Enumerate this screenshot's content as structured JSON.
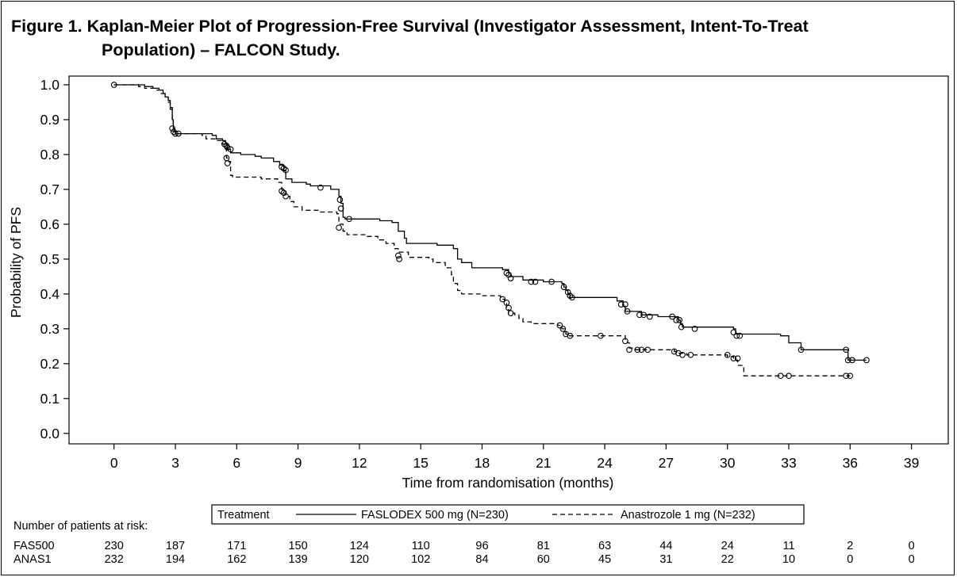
{
  "figure": {
    "title_line1": "Figure 1. Kaplan-Meier Plot of Progression-Free Survival (Investigator Assessment, Intent-To-Treat",
    "title_line2": "Population) – FALCON Study."
  },
  "chart_data": {
    "type": "line",
    "subtype": "kaplan-meier step",
    "xlabel": "Time from randomisation (months)",
    "ylabel": "Probability of PFS",
    "xlim": [
      -2.2,
      40.8
    ],
    "ylim": [
      -0.03,
      1.025
    ],
    "xticks": [
      0,
      3,
      6,
      9,
      12,
      15,
      18,
      21,
      24,
      27,
      30,
      33,
      36,
      39
    ],
    "yticks": [
      "0.0",
      "0.1",
      "0.2",
      "0.3",
      "0.4",
      "0.5",
      "0.6",
      "0.7",
      "0.8",
      "0.9",
      "1.0"
    ],
    "grid": false,
    "legend": {
      "title": "Treatment",
      "placement": "bottom-center",
      "entries": [
        "FASLODEX 500 mg (N=230)",
        "Anastrozole 1 mg (N=232)"
      ]
    },
    "series": [
      {
        "name": "FASLODEX 500 mg (N=230)",
        "line_style": "solid",
        "steps": [
          [
            0,
            1.0
          ],
          [
            1.4,
            1.0
          ],
          [
            1.5,
            0.995
          ],
          [
            1.9,
            0.99
          ],
          [
            2.2,
            0.985
          ],
          [
            2.4,
            0.975
          ],
          [
            2.5,
            0.965
          ],
          [
            2.65,
            0.955
          ],
          [
            2.75,
            0.935
          ],
          [
            2.85,
            0.9
          ],
          [
            2.9,
            0.875
          ],
          [
            2.95,
            0.865
          ],
          [
            3.0,
            0.86
          ],
          [
            4.8,
            0.855
          ],
          [
            5.0,
            0.845
          ],
          [
            5.3,
            0.84
          ],
          [
            5.45,
            0.83
          ],
          [
            5.55,
            0.815
          ],
          [
            5.7,
            0.805
          ],
          [
            6.2,
            0.8
          ],
          [
            6.9,
            0.795
          ],
          [
            7.2,
            0.79
          ],
          [
            7.8,
            0.78
          ],
          [
            8.1,
            0.77
          ],
          [
            8.3,
            0.755
          ],
          [
            8.4,
            0.73
          ],
          [
            8.7,
            0.72
          ],
          [
            9.4,
            0.715
          ],
          [
            9.6,
            0.71
          ],
          [
            10.6,
            0.7
          ],
          [
            11.0,
            0.68
          ],
          [
            11.1,
            0.66
          ],
          [
            11.2,
            0.62
          ],
          [
            11.3,
            0.615
          ],
          [
            13.0,
            0.61
          ],
          [
            13.6,
            0.605
          ],
          [
            13.9,
            0.58
          ],
          [
            14.2,
            0.56
          ],
          [
            14.3,
            0.545
          ],
          [
            15.8,
            0.54
          ],
          [
            16.6,
            0.53
          ],
          [
            16.8,
            0.5
          ],
          [
            17.0,
            0.49
          ],
          [
            17.5,
            0.475
          ],
          [
            19.0,
            0.47
          ],
          [
            19.3,
            0.46
          ],
          [
            19.4,
            0.45
          ],
          [
            20.0,
            0.44
          ],
          [
            21.0,
            0.435
          ],
          [
            21.9,
            0.43
          ],
          [
            22.0,
            0.42
          ],
          [
            22.1,
            0.41
          ],
          [
            22.2,
            0.4
          ],
          [
            22.3,
            0.39
          ],
          [
            24.6,
            0.38
          ],
          [
            24.9,
            0.365
          ],
          [
            25.0,
            0.35
          ],
          [
            25.8,
            0.34
          ],
          [
            26.6,
            0.335
          ],
          [
            27.6,
            0.325
          ],
          [
            27.7,
            0.315
          ],
          [
            27.8,
            0.305
          ],
          [
            30.3,
            0.3
          ],
          [
            30.4,
            0.285
          ],
          [
            32.6,
            0.28
          ],
          [
            33.0,
            0.26
          ],
          [
            33.6,
            0.24
          ],
          [
            35.8,
            0.24
          ],
          [
            35.9,
            0.21
          ],
          [
            36.8,
            0.21
          ]
        ],
        "censored": [
          [
            0,
            1.0
          ],
          [
            2.85,
            0.875
          ],
          [
            2.92,
            0.865
          ],
          [
            3.0,
            0.86
          ],
          [
            3.15,
            0.86
          ],
          [
            5.4,
            0.83
          ],
          [
            5.5,
            0.825
          ],
          [
            5.55,
            0.82
          ],
          [
            5.7,
            0.815
          ],
          [
            8.2,
            0.765
          ],
          [
            8.3,
            0.76
          ],
          [
            8.4,
            0.755
          ],
          [
            10.1,
            0.705
          ],
          [
            11.05,
            0.67
          ],
          [
            11.1,
            0.645
          ],
          [
            11.5,
            0.615
          ],
          [
            19.2,
            0.46
          ],
          [
            19.3,
            0.455
          ],
          [
            19.4,
            0.445
          ],
          [
            20.4,
            0.435
          ],
          [
            20.6,
            0.435
          ],
          [
            21.4,
            0.435
          ],
          [
            22.0,
            0.42
          ],
          [
            22.2,
            0.405
          ],
          [
            22.3,
            0.395
          ],
          [
            22.4,
            0.39
          ],
          [
            24.8,
            0.37
          ],
          [
            25.0,
            0.37
          ],
          [
            25.1,
            0.35
          ],
          [
            25.7,
            0.34
          ],
          [
            25.9,
            0.34
          ],
          [
            26.2,
            0.335
          ],
          [
            27.3,
            0.335
          ],
          [
            27.5,
            0.325
          ],
          [
            27.65,
            0.325
          ],
          [
            27.75,
            0.305
          ],
          [
            28.4,
            0.3
          ],
          [
            30.3,
            0.29
          ],
          [
            30.45,
            0.28
          ],
          [
            30.6,
            0.28
          ],
          [
            33.6,
            0.24
          ],
          [
            35.8,
            0.24
          ],
          [
            35.9,
            0.21
          ],
          [
            36.1,
            0.21
          ],
          [
            36.8,
            0.21
          ]
        ]
      },
      {
        "name": "Anastrozole 1 mg (N=232)",
        "line_style": "dashed",
        "steps": [
          [
            0,
            1.0
          ],
          [
            1.2,
            0.995
          ],
          [
            1.5,
            0.99
          ],
          [
            2.0,
            0.985
          ],
          [
            2.3,
            0.975
          ],
          [
            2.5,
            0.965
          ],
          [
            2.65,
            0.95
          ],
          [
            2.75,
            0.93
          ],
          [
            2.85,
            0.9
          ],
          [
            2.9,
            0.875
          ],
          [
            2.95,
            0.865
          ],
          [
            3.0,
            0.86
          ],
          [
            4.3,
            0.855
          ],
          [
            4.5,
            0.845
          ],
          [
            5.0,
            0.84
          ],
          [
            5.3,
            0.83
          ],
          [
            5.5,
            0.79
          ],
          [
            5.6,
            0.78
          ],
          [
            5.7,
            0.74
          ],
          [
            5.8,
            0.735
          ],
          [
            7.2,
            0.73
          ],
          [
            8.0,
            0.72
          ],
          [
            8.2,
            0.7
          ],
          [
            8.4,
            0.68
          ],
          [
            8.6,
            0.665
          ],
          [
            8.8,
            0.65
          ],
          [
            9.2,
            0.64
          ],
          [
            10.0,
            0.635
          ],
          [
            10.9,
            0.63
          ],
          [
            11.0,
            0.6
          ],
          [
            11.2,
            0.58
          ],
          [
            11.4,
            0.57
          ],
          [
            12.3,
            0.565
          ],
          [
            12.9,
            0.555
          ],
          [
            13.3,
            0.545
          ],
          [
            13.7,
            0.53
          ],
          [
            13.9,
            0.52
          ],
          [
            14.4,
            0.505
          ],
          [
            15.4,
            0.5
          ],
          [
            15.6,
            0.49
          ],
          [
            16.2,
            0.48
          ],
          [
            16.3,
            0.475
          ],
          [
            16.5,
            0.455
          ],
          [
            16.6,
            0.43
          ],
          [
            16.8,
            0.41
          ],
          [
            17.0,
            0.4
          ],
          [
            18.0,
            0.395
          ],
          [
            18.9,
            0.385
          ],
          [
            19.1,
            0.375
          ],
          [
            19.2,
            0.36
          ],
          [
            19.3,
            0.345
          ],
          [
            19.6,
            0.34
          ],
          [
            19.8,
            0.33
          ],
          [
            20.0,
            0.32
          ],
          [
            20.4,
            0.315
          ],
          [
            21.7,
            0.31
          ],
          [
            21.9,
            0.3
          ],
          [
            22.1,
            0.285
          ],
          [
            22.2,
            0.28
          ],
          [
            25.0,
            0.27
          ],
          [
            25.1,
            0.26
          ],
          [
            25.2,
            0.245
          ],
          [
            25.5,
            0.24
          ],
          [
            27.4,
            0.235
          ],
          [
            27.6,
            0.23
          ],
          [
            28.0,
            0.225
          ],
          [
            30.0,
            0.22
          ],
          [
            30.3,
            0.21
          ],
          [
            30.5,
            0.195
          ],
          [
            30.8,
            0.165
          ],
          [
            36.0,
            0.165
          ]
        ],
        "censored": [
          [
            5.5,
            0.79
          ],
          [
            5.55,
            0.775
          ],
          [
            8.2,
            0.695
          ],
          [
            8.3,
            0.69
          ],
          [
            8.4,
            0.68
          ],
          [
            11.0,
            0.59
          ],
          [
            13.9,
            0.51
          ],
          [
            13.95,
            0.5
          ],
          [
            19.0,
            0.385
          ],
          [
            19.2,
            0.375
          ],
          [
            19.3,
            0.36
          ],
          [
            19.4,
            0.345
          ],
          [
            21.8,
            0.31
          ],
          [
            21.95,
            0.3
          ],
          [
            22.1,
            0.285
          ],
          [
            22.3,
            0.28
          ],
          [
            23.8,
            0.28
          ],
          [
            25.0,
            0.265
          ],
          [
            25.2,
            0.24
          ],
          [
            25.6,
            0.24
          ],
          [
            25.8,
            0.24
          ],
          [
            26.1,
            0.24
          ],
          [
            27.4,
            0.235
          ],
          [
            27.6,
            0.23
          ],
          [
            27.8,
            0.225
          ],
          [
            28.2,
            0.225
          ],
          [
            30.0,
            0.225
          ],
          [
            30.3,
            0.215
          ],
          [
            30.5,
            0.215
          ],
          [
            32.6,
            0.165
          ],
          [
            33.0,
            0.165
          ],
          [
            35.8,
            0.165
          ],
          [
            36.0,
            0.165
          ]
        ]
      }
    ],
    "risk_table": {
      "title": "Number of patients at risk:",
      "times": [
        0,
        3,
        6,
        9,
        12,
        15,
        18,
        21,
        24,
        27,
        30,
        33,
        36,
        39
      ],
      "rows": [
        {
          "label": "FAS500",
          "counts": [
            "230",
            "187",
            "171",
            "150",
            "124",
            "110",
            "96",
            "81",
            "63",
            "44",
            "24",
            "11",
            "2",
            "0"
          ]
        },
        {
          "label": "ANAS1",
          "counts": [
            "232",
            "194",
            "162",
            "139",
            "120",
            "102",
            "84",
            "60",
            "45",
            "31",
            "22",
            "10",
            "0",
            "0"
          ]
        }
      ]
    }
  }
}
